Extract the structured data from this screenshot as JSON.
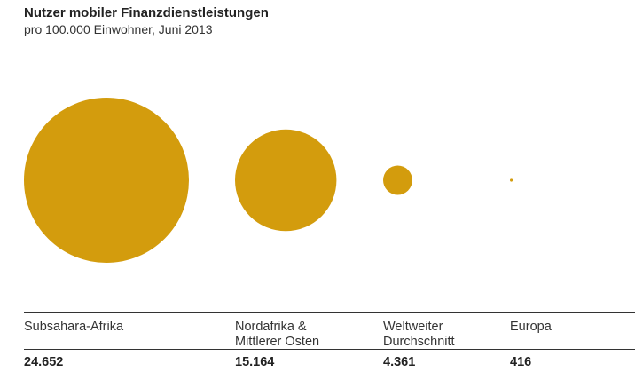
{
  "chart_data": {
    "type": "bubble",
    "title": "Nutzer mobiler Finanzdienstleistungen",
    "subtitle": "pro 100.000 Einwohner, Juni 2013",
    "categories": [
      "Subsahara-Afrika",
      "Nordafrika & Mittlerer Osten",
      "Weltweiter Durchschnitt",
      "Europa"
    ],
    "values": [
      24652,
      15164,
      4361,
      416
    ],
    "value_labels": [
      "24.652",
      "15.164",
      "4.361",
      "416"
    ],
    "color": "#d39c0d"
  }
}
